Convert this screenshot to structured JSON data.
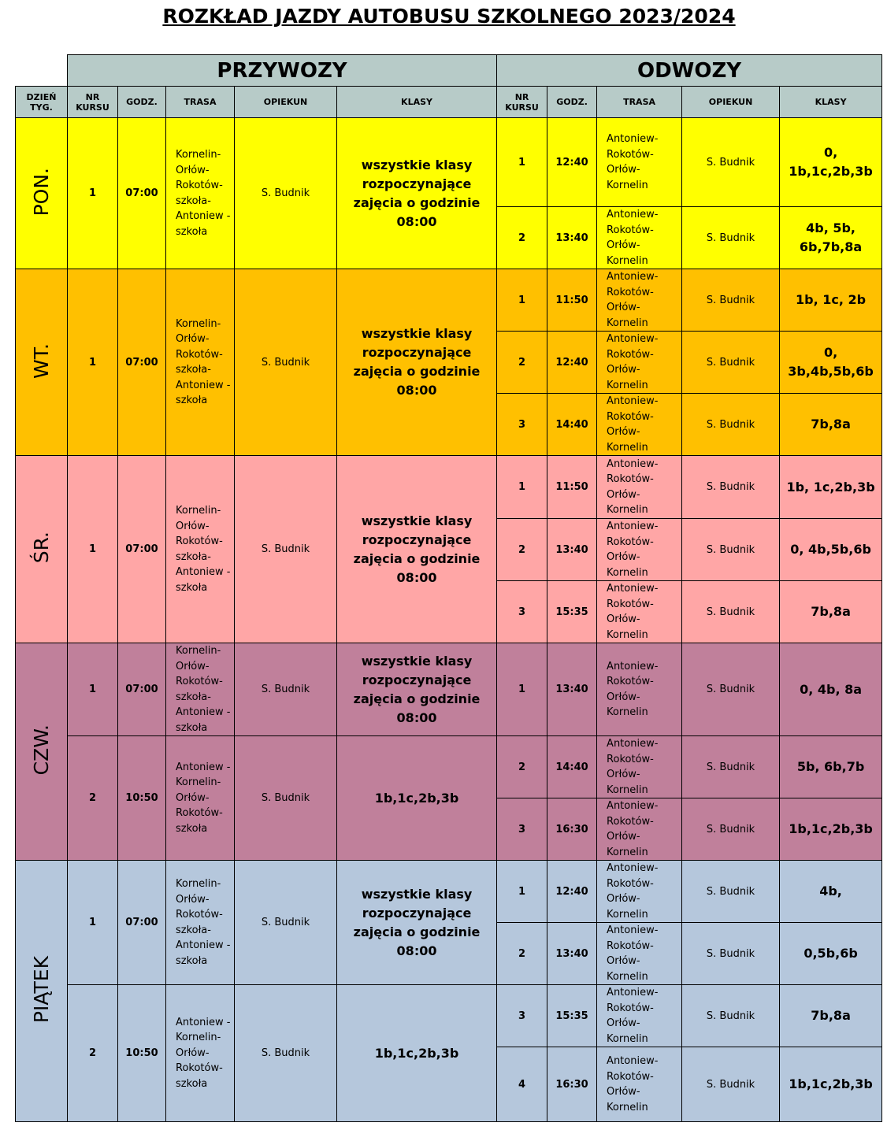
{
  "title": "ROZKŁAD JAZDY AUTOBUSU SZKOLNEGO 2023/2024",
  "groups": [
    "PRZYWOZY",
    "ODWOZY"
  ],
  "headers": [
    "DZIEŃ TYG.",
    "NR KURSU",
    "GODZ.",
    "TRASA",
    "OPIEKUN",
    "KLASY",
    "NR KURSU",
    "GODZ.",
    "TRASA",
    "OPIEKUN",
    "KLASY"
  ],
  "days": [
    {
      "name": "PON.",
      "color": "#ffff00",
      "rows": [
        {
          "przywoz": {
            "nr": "1",
            "time": "07:00",
            "route": "Kornelin-Orłów-Rokotów-szkoła-Antoniew -szkoła",
            "guardian": "S. Budnik",
            "classes": "wszystkie klasy rozpoczynające zajęcia o godzinie 08:00"
          },
          "odwozy": [
            {
              "nr": "1",
              "time": "12:40",
              "route": "Antoniew-Rokotów-Orłów-Kornelin",
              "guardian": "S. Budnik",
              "classes": "0, 1b,1c,2b,3b"
            },
            {
              "nr": "2",
              "time": "13:40",
              "route": "Antoniew-Rokotów-Orłów-Kornelin",
              "guardian": "S. Budnik",
              "classes": "4b, 5b, 6b,7b,8a"
            }
          ]
        }
      ]
    },
    {
      "name": "WT.",
      "color": "#ffc000",
      "rows": [
        {
          "przywoz": {
            "nr": "1",
            "time": "07:00",
            "route": "Kornelin-Orłów-Rokotów-szkoła-Antoniew -szkoła",
            "guardian": "S. Budnik",
            "classes": "wszystkie klasy rozpoczynające zajęcia o godzinie 08:00"
          },
          "odwozy": [
            {
              "nr": "1",
              "time": "11:50",
              "route": "Antoniew-Rokotów-Orłów-Kornelin",
              "guardian": "S. Budnik",
              "classes": "1b, 1c, 2b"
            },
            {
              "nr": "2",
              "time": "12:40",
              "route": "Antoniew-Rokotów-Orłów-Kornelin",
              "guardian": "S. Budnik",
              "classes": "0, 3b,4b,5b,6b"
            },
            {
              "nr": "3",
              "time": "14:40",
              "route": "Antoniew-Rokotów-Orłów-Kornelin",
              "guardian": "S. Budnik",
              "classes": "7b,8a"
            }
          ]
        }
      ]
    },
    {
      "name": "ŚR.",
      "color": "#ffa6a6",
      "rows": [
        {
          "przywoz": {
            "nr": "1",
            "time": "07:00",
            "route": "Kornelin-Orłów-Rokotów-szkoła-Antoniew -szkoła",
            "guardian": "S. Budnik",
            "classes": "wszystkie klasy rozpoczynające zajęcia o godzinie 08:00"
          },
          "odwozy": [
            {
              "nr": "1",
              "time": "11:50",
              "route": "Antoniew-Rokotów-Orłów-Kornelin",
              "guardian": "S. Budnik",
              "classes": "1b, 1c,2b,3b"
            },
            {
              "nr": "2",
              "time": "13:40",
              "route": "Antoniew-Rokotów-Orłów-Kornelin",
              "guardian": "S. Budnik",
              "classes": "0, 4b,5b,6b"
            },
            {
              "nr": "3",
              "time": "15:35",
              "route": "Antoniew-Rokotów-Orłów-Kornelin",
              "guardian": "S. Budnik",
              "classes": "7b,8a"
            }
          ]
        }
      ]
    },
    {
      "name": "CZW.",
      "color": "#c0809b",
      "rows": [
        {
          "przywoz": {
            "nr": "1",
            "time": "07:00",
            "route": "Kornelin-Orłów-Rokotów-szkoła-Antoniew -szkoła",
            "guardian": "S. Budnik",
            "classes": "wszystkie klasy rozpoczynające zajęcia o godzinie 08:00"
          },
          "odwozy": [
            {
              "nr": "1",
              "time": "13:40",
              "route": "Antoniew-Rokotów-Orłów-Kornelin",
              "guardian": "S. Budnik",
              "classes": "0, 4b, 8a"
            }
          ]
        },
        {
          "przywoz": {
            "nr": "2",
            "time": "10:50",
            "route": "Antoniew -Kornelin-Orłów-Rokotów-szkoła",
            "guardian": "S. Budnik",
            "classes": "1b,1c,2b,3b"
          },
          "odwozy": [
            {
              "nr": "2",
              "time": "14:40",
              "route": "Antoniew-Rokotów-Orłów-Kornelin",
              "guardian": "S. Budnik",
              "classes": "5b, 6b,7b"
            },
            {
              "nr": "3",
              "time": "16:30",
              "route": "Antoniew-Rokotów-Orłów-Kornelin",
              "guardian": "S. Budnik",
              "classes": "1b,1c,2b,3b"
            }
          ]
        }
      ]
    },
    {
      "name": "PIĄTEK",
      "color": "#b5c7dc",
      "rows": [
        {
          "przywoz": {
            "nr": "1",
            "time": "07:00",
            "route": "Kornelin-Orłów-Rokotów-szkoła-Antoniew -szkoła",
            "guardian": "S. Budnik",
            "classes": "wszystkie klasy rozpoczynające zajęcia o godzinie 08:00"
          },
          "odwozy": [
            {
              "nr": "1",
              "time": "12:40",
              "route": "Antoniew-Rokotów-Orłów-Kornelin",
              "guardian": "S. Budnik",
              "classes": "4b,"
            },
            {
              "nr": "2",
              "time": "13:40",
              "route": "Antoniew-Rokotów-Orłów-Kornelin",
              "guardian": "S. Budnik",
              "classes": "0,5b,6b"
            }
          ]
        },
        {
          "przywoz": {
            "nr": "2",
            "time": "10:50",
            "route": "Antoniew -Kornelin-Orłów-Rokotów-szkoła",
            "guardian": "S. Budnik",
            "classes": "1b,1c,2b,3b"
          },
          "odwozy": [
            {
              "nr": "3",
              "time": "15:35",
              "route": "Antoniew-Rokotów-Orłów-Kornelin",
              "guardian": "S. Budnik",
              "classes": "7b,8a"
            },
            {
              "nr": "4",
              "time": "16:30",
              "route": "Antoniew-Rokotów-Orłów-Kornelin",
              "guardian": "S. Budnik",
              "classes": "1b,1c,2b,3b"
            }
          ]
        }
      ]
    }
  ]
}
